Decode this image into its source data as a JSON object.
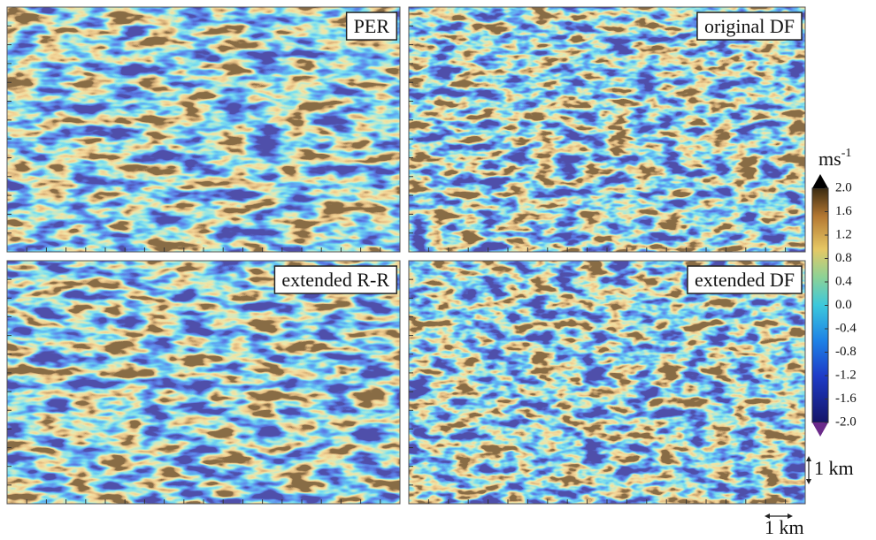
{
  "panels": [
    {
      "label": "PER"
    },
    {
      "label": "original DF"
    },
    {
      "label": "extended R-R"
    },
    {
      "label": "extended DF"
    }
  ],
  "colorbar": {
    "unit": "ms",
    "unit_exponent": "-1",
    "ticks": [
      {
        "value": 2,
        "label": "2.0"
      },
      {
        "value": 1.6,
        "label": "1.6"
      },
      {
        "value": 1.2,
        "label": "1.2"
      },
      {
        "value": 0.8,
        "label": "0.8"
      },
      {
        "value": 0.4,
        "label": "0.4"
      },
      {
        "value": 0,
        "label": "0.0"
      },
      {
        "value": -0.4,
        "label": "-0.4"
      },
      {
        "value": -0.8,
        "label": "-0.8"
      },
      {
        "value": -1.2,
        "label": "-1.2"
      },
      {
        "value": -1.6,
        "label": "-1.6"
      },
      {
        "value": -2,
        "label": "-2.0"
      }
    ]
  },
  "scale": {
    "vertical": "1 km",
    "horizontal": "1 km"
  }
}
